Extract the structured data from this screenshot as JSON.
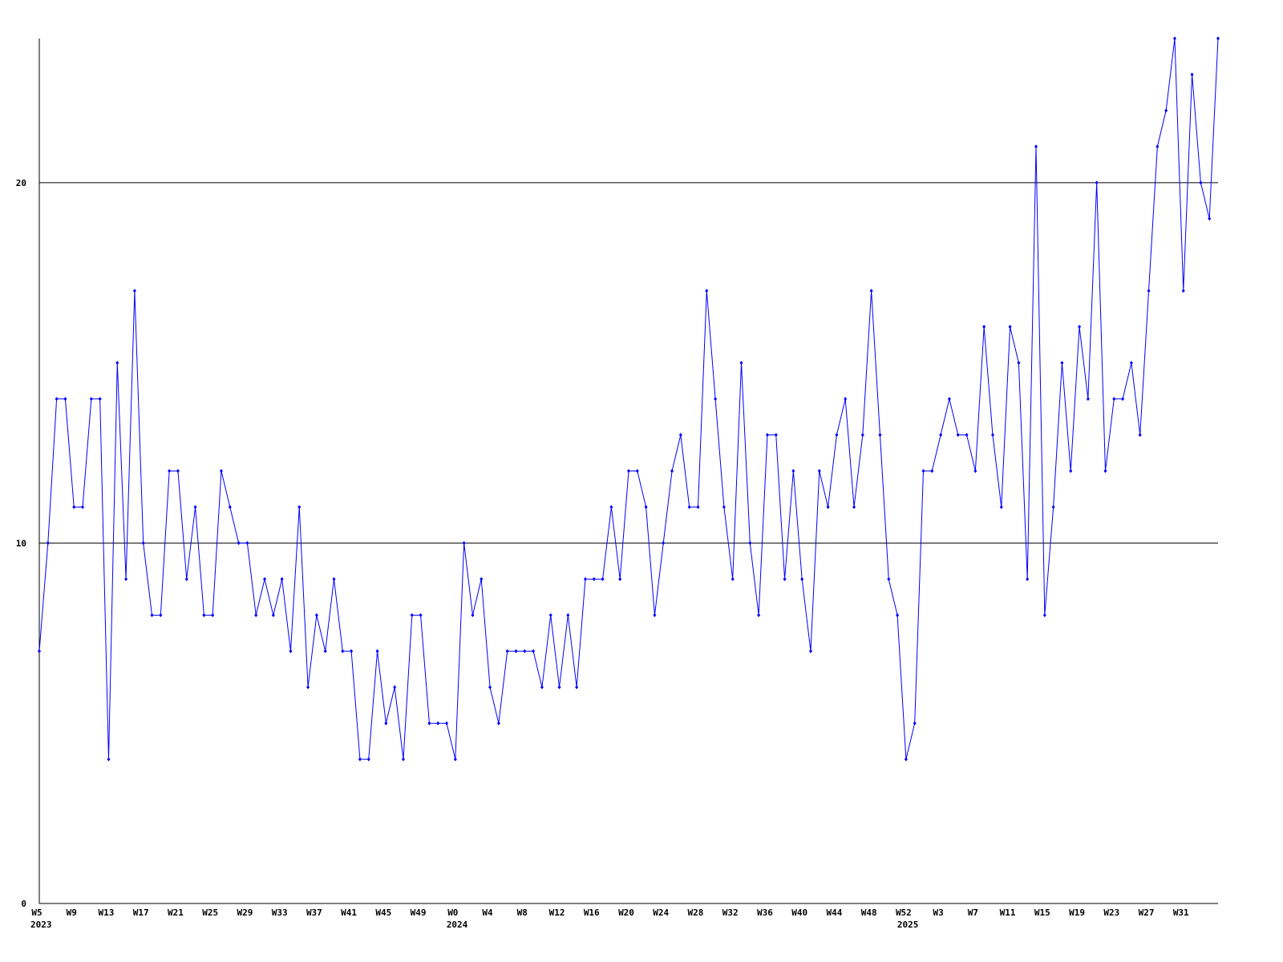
{
  "chart_data": {
    "type": "line",
    "categories": [
      [
        "W5",
        "2023"
      ],
      null,
      null,
      null,
      [
        "W9"
      ],
      null,
      null,
      null,
      [
        "W13"
      ],
      null,
      null,
      null,
      [
        "W17"
      ],
      null,
      null,
      null,
      [
        "W21"
      ],
      null,
      null,
      null,
      [
        "W25"
      ],
      null,
      null,
      null,
      [
        "W29"
      ],
      null,
      null,
      null,
      [
        "W33"
      ],
      null,
      null,
      null,
      [
        "W37"
      ],
      null,
      null,
      null,
      [
        "W41"
      ],
      null,
      null,
      null,
      [
        "W45"
      ],
      null,
      null,
      null,
      [
        "W49"
      ],
      null,
      null,
      null,
      [
        "W0",
        "2024"
      ],
      null,
      null,
      null,
      [
        "W4"
      ],
      null,
      null,
      null,
      [
        "W8"
      ],
      null,
      null,
      null,
      [
        "W12"
      ],
      null,
      null,
      null,
      [
        "W16"
      ],
      null,
      null,
      null,
      [
        "W20"
      ],
      null,
      null,
      null,
      [
        "W24"
      ],
      null,
      null,
      null,
      [
        "W28"
      ],
      null,
      null,
      null,
      [
        "W32"
      ],
      null,
      null,
      null,
      [
        "W36"
      ],
      null,
      null,
      null,
      [
        "W40"
      ],
      null,
      null,
      null,
      [
        "W44"
      ],
      null,
      null,
      null,
      [
        "W48"
      ],
      null,
      null,
      null,
      [
        "W52",
        "2025"
      ],
      null,
      null,
      null,
      [
        "W3"
      ],
      null,
      null,
      null,
      [
        "W7"
      ],
      null,
      null,
      null,
      [
        "W11"
      ],
      null,
      null,
      null,
      [
        "W15"
      ],
      null,
      null,
      null,
      [
        "W19"
      ],
      null,
      null,
      null,
      [
        "W23"
      ],
      null,
      null,
      null,
      [
        "W27"
      ],
      null,
      null,
      null,
      [
        "W31"
      ],
      null,
      null,
      null,
      null
    ],
    "values": [
      7,
      10,
      14,
      14,
      11,
      11,
      14,
      14,
      4,
      15,
      9,
      17,
      10,
      8,
      8,
      12,
      12,
      9,
      11,
      8,
      8,
      12,
      11,
      10,
      10,
      8,
      9,
      8,
      9,
      7,
      11,
      6,
      8,
      7,
      9,
      7,
      7,
      4,
      4,
      7,
      5,
      6,
      4,
      8,
      8,
      5,
      5,
      5,
      4,
      10,
      8,
      9,
      6,
      5,
      7,
      7,
      7,
      7,
      6,
      8,
      6,
      8,
      6,
      9,
      9,
      9,
      11,
      9,
      12,
      12,
      11,
      8,
      10,
      12,
      13,
      11,
      11,
      17,
      14,
      11,
      9,
      15,
      10,
      8,
      13,
      13,
      9,
      12,
      9,
      7,
      12,
      11,
      13,
      14,
      11,
      13,
      17,
      13,
      9,
      8,
      4,
      5,
      12,
      12,
      13,
      14,
      13,
      13,
      12,
      16,
      13,
      11,
      16,
      15,
      9,
      21,
      8,
      11,
      15,
      12,
      16,
      14,
      20,
      12,
      14,
      14,
      15,
      13,
      17,
      21,
      22,
      24,
      17,
      23,
      20,
      19,
      24
    ],
    "color": "#0000ff",
    "ylim": [
      0,
      24
    ],
    "yticks": [
      0,
      10,
      20
    ],
    "grid": true
  }
}
